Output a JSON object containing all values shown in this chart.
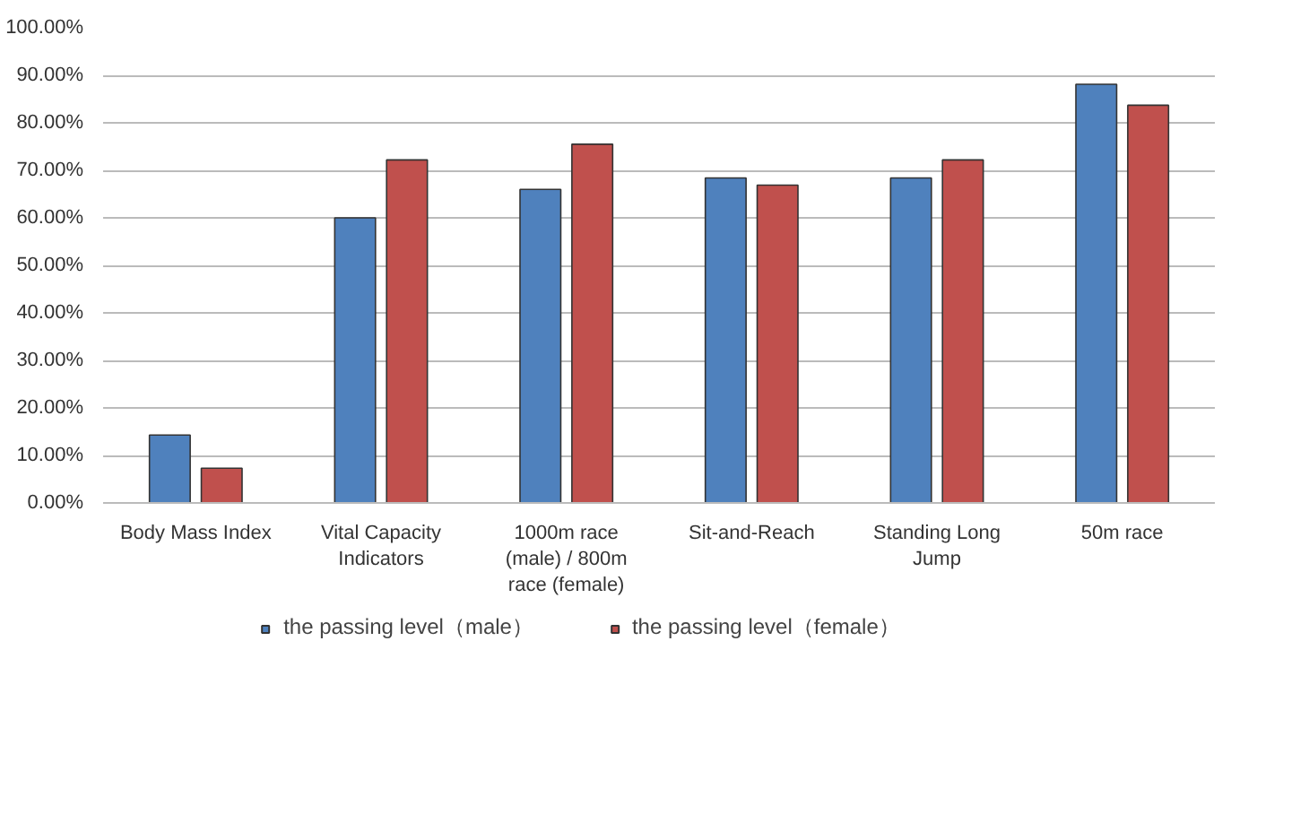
{
  "chart_data": {
    "type": "bar",
    "categories": [
      "Body Mass Index",
      "Vital Capacity Indicators",
      "1000m race (male) / 800m race (female)",
      "Sit-and-Reach",
      "Standing Long Jump",
      "50m race"
    ],
    "series": [
      {
        "name": "the passing level（male）",
        "color": "#4f81bd",
        "values": [
          14.3,
          60.0,
          66.0,
          68.4,
          68.4,
          88.1
        ]
      },
      {
        "name": "the passing level（female）",
        "color": "#c0504d",
        "values": [
          7.3,
          72.2,
          75.5,
          66.9,
          72.2,
          83.7
        ]
      }
    ],
    "ylim": [
      0,
      100
    ],
    "yticks": [
      {
        "value": 0,
        "label": "0.00%"
      },
      {
        "value": 10,
        "label": "10.00%"
      },
      {
        "value": 20,
        "label": "20.00%"
      },
      {
        "value": 30,
        "label": "30.00%"
      },
      {
        "value": 40,
        "label": "40.00%"
      },
      {
        "value": 50,
        "label": "50.00%"
      },
      {
        "value": 60,
        "label": "60.00%"
      },
      {
        "value": 70,
        "label": "70.00%"
      },
      {
        "value": 80,
        "label": "80.00%"
      },
      {
        "value": 90,
        "label": "90.00%"
      },
      {
        "value": 100,
        "label": "100.00%"
      }
    ],
    "grid": "y",
    "legend": "bottom"
  }
}
